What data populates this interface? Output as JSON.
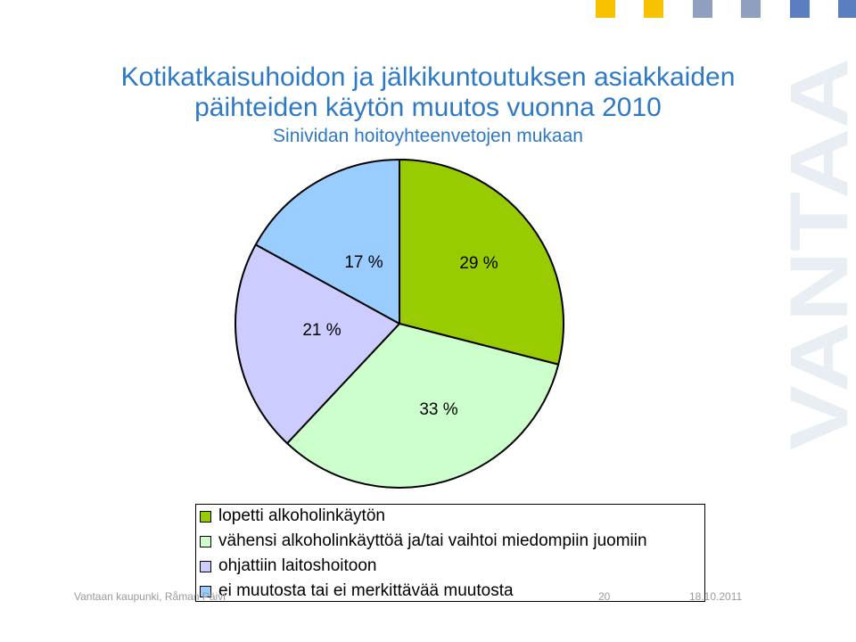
{
  "title": {
    "line1": "Kotikatkaisuhoidon ja jälkikuntoutuksen asiakkaiden",
    "line2": "päihteiden käytön muutos vuonna 2010",
    "subtitle": "Sinividan hoitoyhteenvetojen mukaan"
  },
  "chart_data": {
    "type": "pie",
    "title": "Kotikatkaisuhoidon ja jälkikuntoutuksen asiakkaiden päihteiden käytön muutos vuonna 2010",
    "subtitle": "Sinividan hoitoyhteenvetojen mukaan",
    "slices": [
      {
        "label": "lopetti alkoholinkäytön",
        "value": 29,
        "data_label": "29 %",
        "color": "#99cc00"
      },
      {
        "label": "vähensi alkoholinkäyttöä ja/tai vaihtoi miedompiin juomiin",
        "value": 33,
        "data_label": "33 %",
        "color": "#ccffcc"
      },
      {
        "label": "ohjattiin laitoshoitoon",
        "value": 21,
        "data_label": "21 %",
        "color": "#ccccff"
      },
      {
        "label": "ei muutosta tai ei merkittävää muutosta",
        "value": 17,
        "data_label": "17 %",
        "color": "#99ccff"
      }
    ],
    "start_angle": "12 o'clock",
    "direction": "clockwise",
    "legend_position": "bottom"
  },
  "footer": {
    "left": "Vantaan kaupunki, Råman Päivi",
    "page": "20",
    "date": "18.10.2011"
  },
  "branding": {
    "watermark": "VANTAA",
    "square_colors": [
      "#f7c200",
      "#f7c200",
      "#8e9fbf",
      "#8e9fbf",
      "#5a7ec0",
      "#5a7ec0"
    ]
  }
}
